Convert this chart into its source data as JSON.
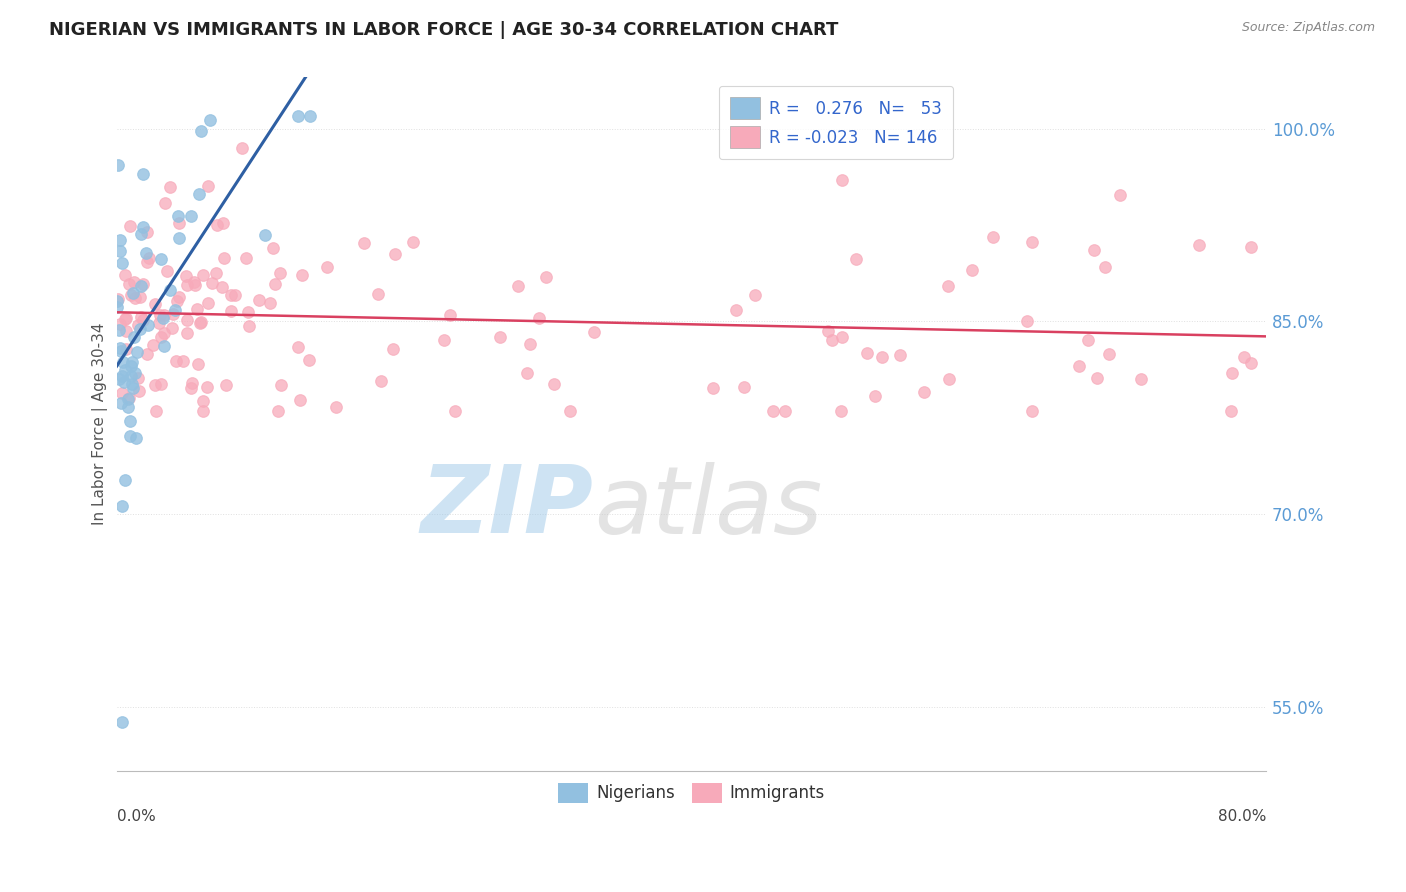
{
  "title": "NIGERIAN VS IMMIGRANTS IN LABOR FORCE | AGE 30-34 CORRELATION CHART",
  "source_text": "Source: ZipAtlas.com",
  "ylabel": "In Labor Force | Age 30-34",
  "yticks": [
    0.55,
    0.7,
    0.85,
    1.0
  ],
  "ytick_labels": [
    "55.0%",
    "70.0%",
    "85.0%",
    "100.0%"
  ],
  "xlim": [
    0.0,
    0.8
  ],
  "ylim": [
    0.5,
    1.04
  ],
  "nigerian_R": 0.276,
  "nigerian_N": 53,
  "immigrant_R": -0.023,
  "immigrant_N": 146,
  "nigerian_color": "#92C0E0",
  "immigrant_color": "#F7AABA",
  "nigerian_line_color": "#2E5FA3",
  "immigrant_line_color": "#D94060",
  "grid_color": "#E0E0E0",
  "title_color": "#222222",
  "legend_text_color": "#3366CC",
  "watermark_zip_color": "#9EC8E8",
  "watermark_atlas_color": "#C8C8C8",
  "axis_label_color": "#555555",
  "tick_color": "#5B9BD5",
  "source_color": "#888888"
}
